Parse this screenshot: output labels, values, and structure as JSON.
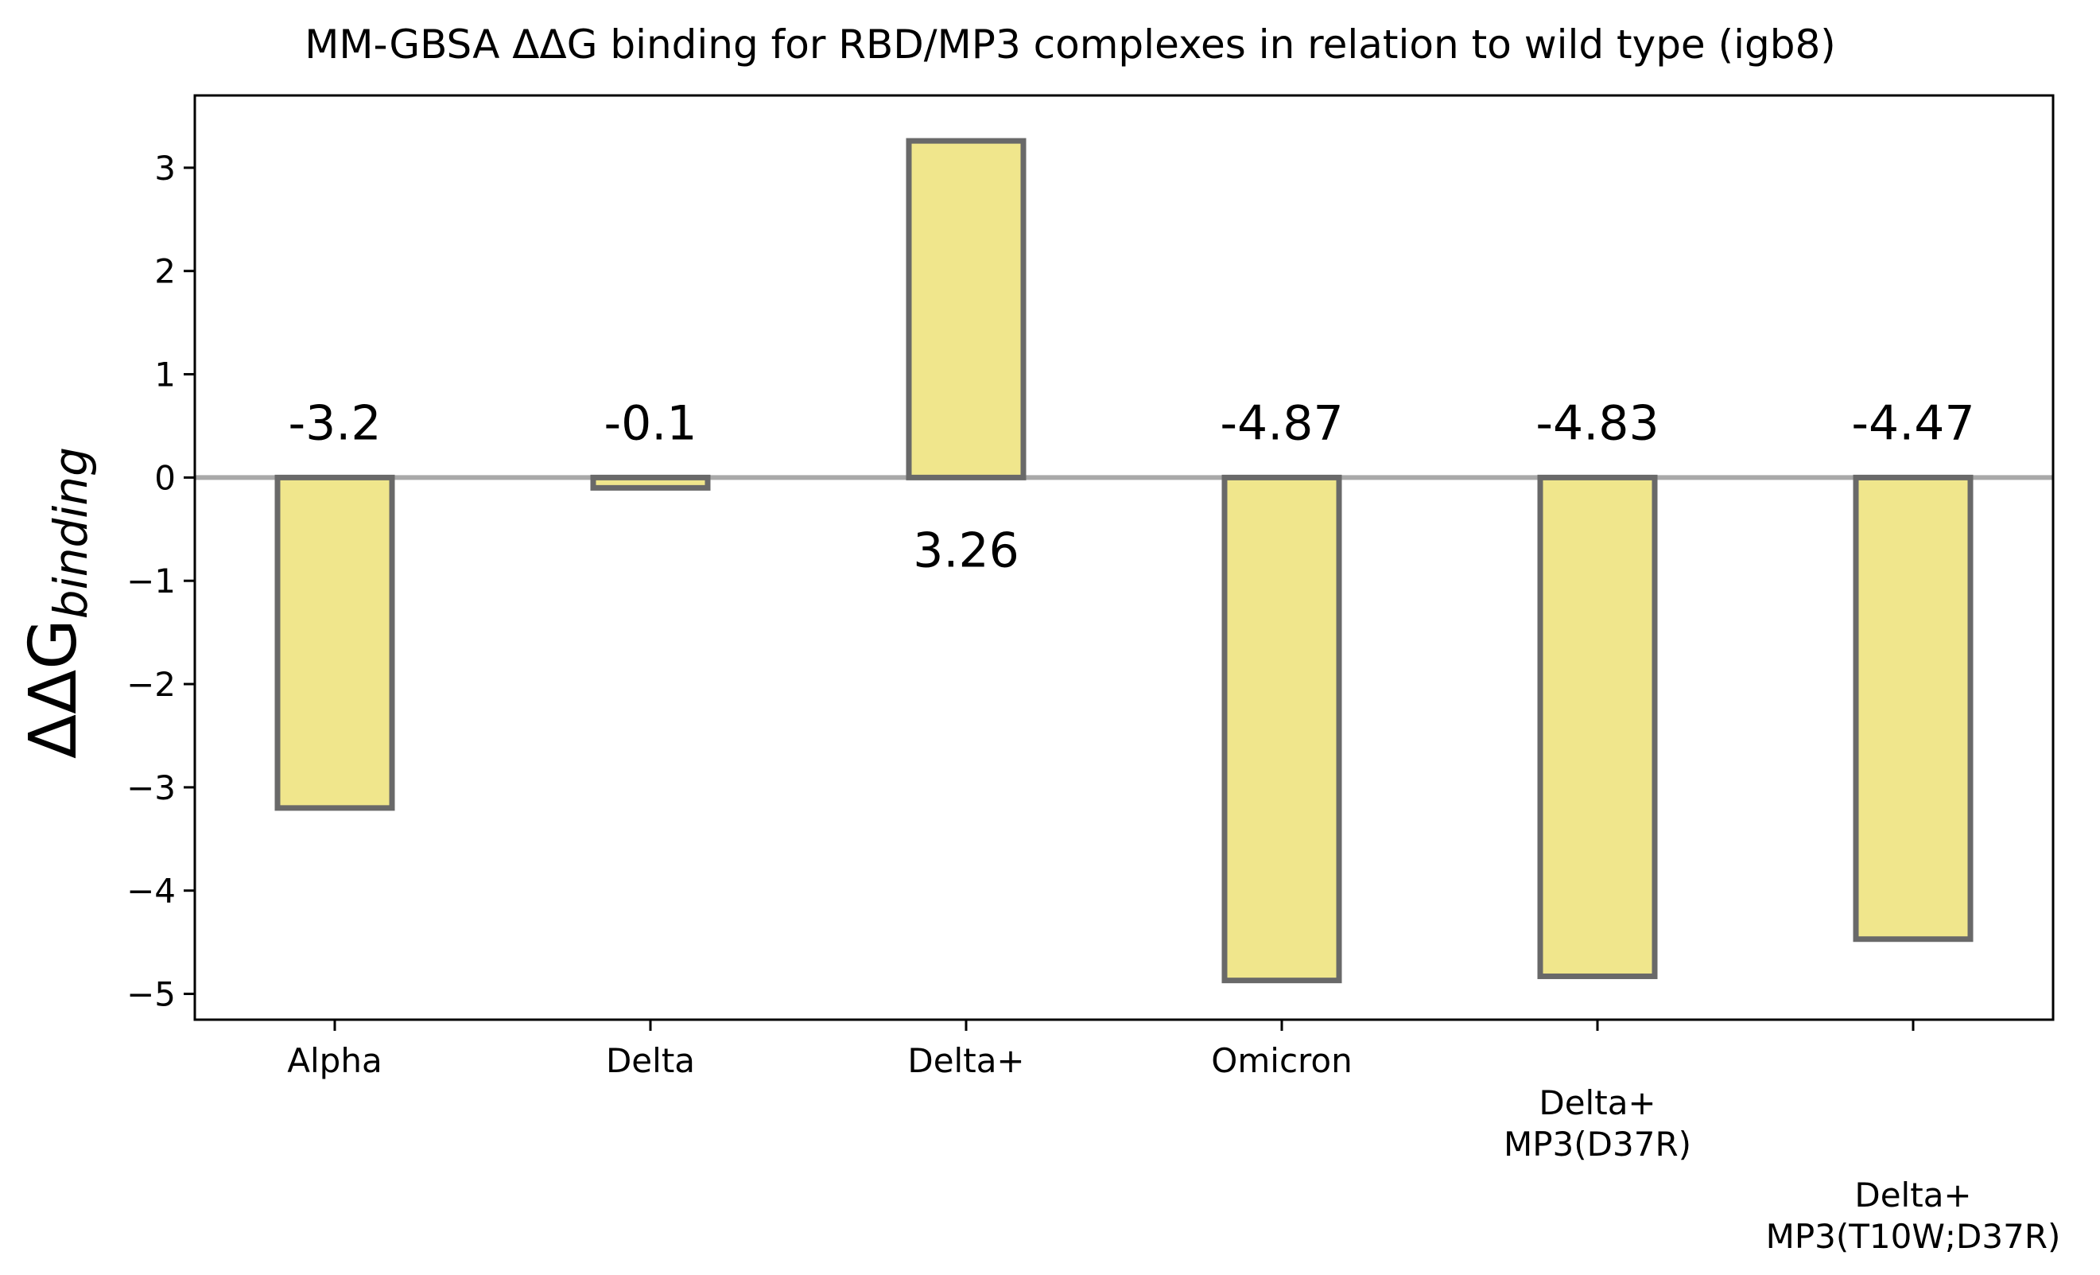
{
  "chart_data": {
    "type": "bar",
    "title": "MM-GBSA ΔΔG binding for RBD/MP3 complexes in relation to wild type (igb8)",
    "ylabel": "ΔΔG",
    "ylabel_subscript": "binding",
    "xlabel": "",
    "categories": [
      [
        "Alpha"
      ],
      [
        "Delta"
      ],
      [
        "Delta+"
      ],
      [
        "Omicron"
      ],
      [
        "Delta+",
        "MP3(D37R)"
      ],
      [
        "Delta+",
        "MP3(T10W;D37R)"
      ]
    ],
    "values": [
      -3.2,
      -0.1,
      3.26,
      -4.87,
      -4.83,
      -4.47
    ],
    "value_labels": [
      "-3.2",
      "-0.1",
      "3.26",
      "-4.87",
      "-4.83",
      "-4.47"
    ],
    "ylim": [
      -5.25,
      3.7
    ],
    "yticks": [
      -5,
      -4,
      -3,
      -2,
      -1,
      0,
      1,
      2,
      3
    ],
    "ytick_labels": [
      "−5",
      "−4",
      "−3",
      "−2",
      "−1",
      "0",
      "1",
      "2",
      "3"
    ],
    "grid": false,
    "legend": null,
    "zero_line": true,
    "colors": {
      "bar_fill": "#f0e68c",
      "bar_edge": "#696969",
      "zero_line": "#a9a9a9",
      "axis": "#000000"
    }
  }
}
